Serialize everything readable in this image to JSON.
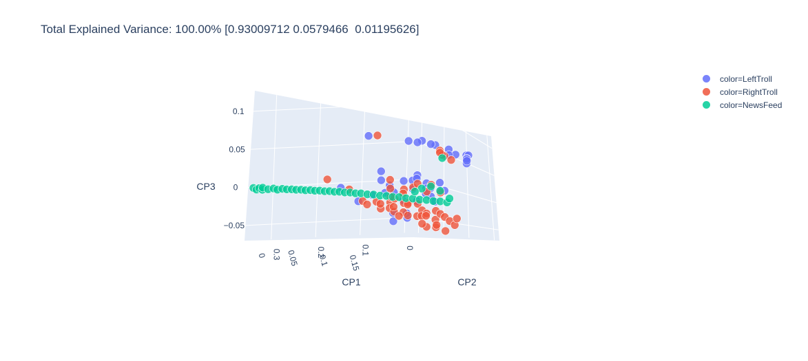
{
  "chart_data": {
    "type": "scatter",
    "subtype": "3d",
    "title": "Total Explained Variance: 100.00% [0.93009712 0.0579466  0.01195626]",
    "axes": {
      "x": {
        "label": "CP1",
        "ticks": [
          "0.3",
          "0.2",
          "0.1",
          "0"
        ]
      },
      "y": {
        "label": "CP2",
        "ticks": [
          "0",
          "0.05",
          "0.1",
          "0.15"
        ]
      },
      "z": {
        "label": "CP3",
        "ticks": [
          "0.1",
          "0.05",
          "0",
          "−0.05"
        ]
      }
    },
    "grid": true,
    "legend_position": "top-right",
    "colors": {
      "plot_background": "#e5ecf6",
      "grid": "#ffffff",
      "text": "#2a3f5f"
    },
    "series": [
      {
        "name": "color=LeftTroll",
        "color": "#636efa",
        "points": [
          [
            0.02,
            0.14,
            0.08
          ],
          [
            0.02,
            0.145,
            0.082
          ],
          [
            0.03,
            0.15,
            0.07
          ],
          [
            0.01,
            0.13,
            0.07
          ],
          [
            0.0,
            0.12,
            0.065
          ],
          [
            -0.005,
            0.115,
            0.06
          ],
          [
            0.005,
            0.1,
            0.065
          ],
          [
            0.01,
            0.09,
            0.07
          ],
          [
            0.02,
            0.1,
            0.065
          ],
          [
            0.02,
            0.07,
            0.07
          ],
          [
            0.02,
            0.06,
            0.068
          ],
          [
            0.03,
            0.05,
            0.07
          ],
          [
            0.04,
            0.05,
            0.068
          ],
          [
            0.05,
            0.04,
            0.067
          ],
          [
            0.12,
            0.02,
            0.07
          ],
          [
            0.18,
            0.02,
            0.0
          ],
          [
            0.14,
            0.02,
            -0.02
          ],
          [
            0.12,
            0.03,
            -0.01
          ],
          [
            0.1,
            0.03,
            0.01
          ],
          [
            0.09,
            0.02,
            0.02
          ],
          [
            0.08,
            0.02,
            -0.01
          ],
          [
            0.08,
            0.03,
            0.0
          ],
          [
            0.07,
            0.02,
            0.0
          ],
          [
            0.06,
            0.02,
            -0.01
          ],
          [
            0.06,
            0.04,
            0.01
          ],
          [
            0.05,
            0.05,
            0.0
          ],
          [
            0.05,
            0.03,
            -0.02
          ],
          [
            0.04,
            0.04,
            0.01
          ],
          [
            0.04,
            0.05,
            0.02
          ],
          [
            0.03,
            0.06,
            0.01
          ],
          [
            0.03,
            0.04,
            -0.02
          ],
          [
            0.02,
            0.05,
            0.0
          ],
          [
            0.02,
            0.06,
            -0.01
          ],
          [
            0.02,
            0.03,
            0.01
          ],
          [
            0.01,
            0.05,
            0.0
          ],
          [
            0.01,
            0.04,
            -0.01
          ],
          [
            0.01,
            0.07,
            0.0
          ],
          [
            0.0,
            0.06,
            0.01
          ],
          [
            0.0,
            0.05,
            -0.02
          ],
          [
            0.0,
            0.07,
            0.0
          ],
          [
            0.06,
            0.02,
            -0.05
          ],
          [
            0.04,
            0.03,
            -0.045
          ],
          [
            0.05,
            0.01,
            -0.04
          ],
          [
            0.03,
            0.02,
            -0.04
          ]
        ]
      },
      {
        "name": "color=RightTroll",
        "color": "#ef553b",
        "points": [
          [
            0.1,
            0.02,
            0.07
          ],
          [
            0.02,
            0.08,
            0.065
          ],
          [
            0.02,
            0.09,
            0.06
          ],
          [
            0.02,
            0.085,
            0.06
          ],
          [
            0.015,
            0.075,
            0.06
          ],
          [
            0.01,
            0.095,
            0.055
          ],
          [
            0.2,
            0.01,
            0.01
          ],
          [
            0.15,
            0.01,
            -0.005
          ],
          [
            0.13,
            0.02,
            -0.02
          ],
          [
            0.12,
            0.02,
            -0.025
          ],
          [
            0.11,
            0.03,
            -0.02
          ],
          [
            0.1,
            0.03,
            -0.03
          ],
          [
            0.09,
            0.02,
            -0.025
          ],
          [
            0.09,
            0.04,
            -0.02
          ],
          [
            0.08,
            0.03,
            -0.03
          ],
          [
            0.08,
            0.04,
            -0.015
          ],
          [
            0.07,
            0.03,
            -0.035
          ],
          [
            0.07,
            0.05,
            -0.02
          ],
          [
            0.06,
            0.04,
            -0.035
          ],
          [
            0.06,
            0.05,
            -0.02
          ],
          [
            0.05,
            0.04,
            -0.04
          ],
          [
            0.05,
            0.06,
            -0.02
          ],
          [
            0.04,
            0.05,
            -0.04
          ],
          [
            0.04,
            0.06,
            -0.03
          ],
          [
            0.03,
            0.05,
            -0.04
          ],
          [
            0.03,
            0.06,
            -0.035
          ],
          [
            0.02,
            0.05,
            -0.04
          ],
          [
            0.02,
            0.07,
            -0.03
          ],
          [
            0.01,
            0.06,
            -0.045
          ],
          [
            0.01,
            0.07,
            -0.035
          ],
          [
            0.0,
            0.07,
            -0.04
          ],
          [
            0.0,
            0.08,
            -0.045
          ],
          [
            0.01,
            0.08,
            -0.06
          ],
          [
            0.02,
            0.07,
            -0.055
          ],
          [
            0.03,
            0.06,
            -0.055
          ],
          [
            0.04,
            0.06,
            -0.05
          ],
          [
            0.07,
            0.05,
            0.0
          ],
          [
            0.06,
            0.06,
            0.005
          ],
          [
            0.05,
            0.06,
            0.01
          ],
          [
            0.04,
            0.07,
            0.0
          ],
          [
            0.03,
            0.07,
            0.01
          ],
          [
            0.02,
            0.08,
            0.0
          ],
          [
            0.08,
            0.03,
            0.01
          ],
          [
            0.09,
            0.04,
            0.0
          ],
          [
            0.1,
            0.05,
            -0.01
          ],
          [
            0.05,
            0.03,
            -0.01
          ],
          [
            0.0,
            0.09,
            -0.05
          ],
          [
            -0.005,
            0.09,
            -0.04
          ],
          [
            0.06,
            0.02,
            -0.03
          ],
          [
            0.07,
            0.04,
            -0.04
          ],
          [
            0.03,
            0.08,
            -0.05
          ],
          [
            0.045,
            0.035,
            -0.025
          ]
        ]
      },
      {
        "name": "color=NewsFeed",
        "color": "#00cc96",
        "points": [
          [
            0.02,
            0.085,
            0.055
          ],
          [
            0.35,
            -0.005,
            0.0
          ],
          [
            0.345,
            -0.003,
            -0.002
          ],
          [
            0.34,
            -0.002,
            0.0
          ],
          [
            0.335,
            0.0,
            -0.002
          ],
          [
            0.33,
            -0.004,
            0.0
          ],
          [
            0.32,
            -0.002,
            -0.002
          ],
          [
            0.31,
            0.0,
            -0.001
          ],
          [
            0.3,
            -0.001,
            -0.003
          ],
          [
            0.29,
            0.0,
            -0.002
          ],
          [
            0.28,
            0.0,
            -0.003
          ],
          [
            0.27,
            0.001,
            -0.003
          ],
          [
            0.26,
            0.001,
            -0.004
          ],
          [
            0.25,
            0.002,
            -0.004
          ],
          [
            0.24,
            0.002,
            -0.005
          ],
          [
            0.23,
            0.003,
            -0.005
          ],
          [
            0.22,
            0.003,
            -0.006
          ],
          [
            0.21,
            0.004,
            -0.006
          ],
          [
            0.2,
            0.005,
            -0.007
          ],
          [
            0.19,
            0.006,
            -0.007
          ],
          [
            0.18,
            0.007,
            -0.008
          ],
          [
            0.17,
            0.008,
            -0.008
          ],
          [
            0.16,
            0.01,
            -0.009
          ],
          [
            0.15,
            0.012,
            -0.009
          ],
          [
            0.14,
            0.014,
            -0.01
          ],
          [
            0.13,
            0.016,
            -0.01
          ],
          [
            0.12,
            0.02,
            -0.011
          ],
          [
            0.11,
            0.024,
            -0.011
          ],
          [
            0.1,
            0.028,
            -0.012
          ],
          [
            0.09,
            0.032,
            -0.012
          ],
          [
            0.08,
            0.036,
            -0.013
          ],
          [
            0.07,
            0.04,
            -0.013
          ],
          [
            0.06,
            0.045,
            -0.014
          ],
          [
            0.05,
            0.05,
            -0.014
          ],
          [
            0.04,
            0.055,
            -0.015
          ],
          [
            0.03,
            0.06,
            -0.015
          ],
          [
            0.02,
            0.065,
            -0.016
          ],
          [
            0.01,
            0.07,
            -0.016
          ],
          [
            0.0,
            0.075,
            -0.017
          ],
          [
            0.03,
            0.05,
            0.0
          ],
          [
            0.02,
            0.06,
            0.005
          ],
          [
            0.01,
            0.07,
            0.0
          ],
          [
            0.04,
            0.045,
            -0.005
          ],
          [
            0.0,
            0.08,
            -0.01
          ]
        ]
      }
    ]
  }
}
